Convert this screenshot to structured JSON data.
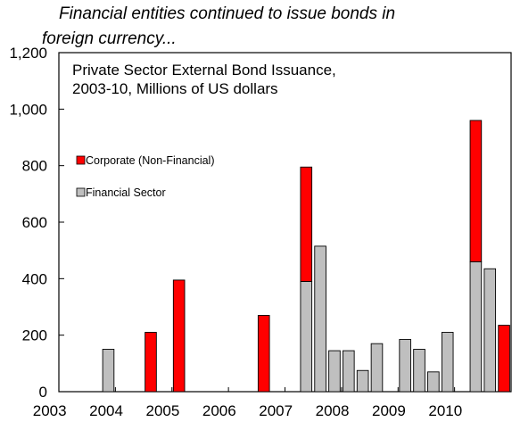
{
  "heading": {
    "line1": "Financial entities continued to issue bonds in",
    "line2": "foreign currency..."
  },
  "chart_data": {
    "type": "bar",
    "stacked": true,
    "title": "Private Sector External Bond Issuance,",
    "subtitle": "2003-10, Millions of US dollars",
    "xlabel": "",
    "ylabel": "",
    "ylim": [
      0,
      1200
    ],
    "yticks": [
      0,
      200,
      400,
      600,
      800,
      1000,
      1200
    ],
    "ytick_labels": [
      "0",
      "200",
      "400",
      "600",
      "800",
      "1,000",
      "1,200"
    ],
    "xtick_labels": [
      "2003",
      "2004",
      "2005",
      "2006",
      "2007",
      "2008",
      "2009",
      "2010"
    ],
    "grid": false,
    "legend_position": "left-middle",
    "periods": 32,
    "series": [
      {
        "name": "Financial Sector",
        "color": "#bfbfbf",
        "values": [
          0,
          0,
          0,
          150,
          0,
          0,
          0,
          0,
          0,
          0,
          0,
          0,
          0,
          0,
          0,
          0,
          0,
          390,
          515,
          145,
          145,
          75,
          170,
          0,
          185,
          150,
          70,
          210,
          0,
          460,
          435,
          0
        ]
      },
      {
        "name": "Corporate (Non-Financial)",
        "color": "#ff0000",
        "values": [
          0,
          0,
          0,
          0,
          0,
          0,
          210,
          0,
          395,
          0,
          0,
          0,
          0,
          0,
          270,
          0,
          0,
          405,
          0,
          0,
          0,
          0,
          0,
          0,
          0,
          0,
          0,
          0,
          0,
          500,
          0,
          235
        ]
      }
    ]
  }
}
